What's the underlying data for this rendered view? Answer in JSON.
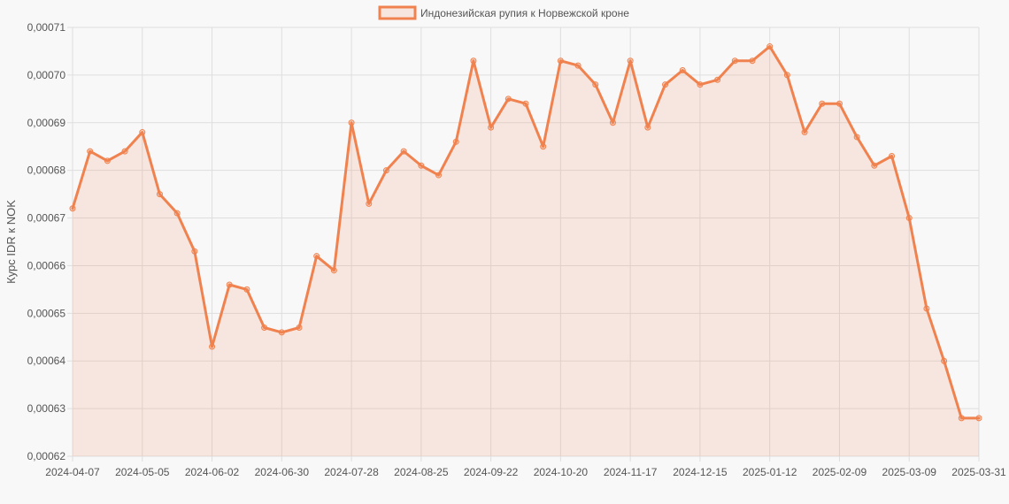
{
  "chart_data": {
    "type": "area",
    "title": "",
    "xlabel": "",
    "ylabel": "Курс IDR к NOK",
    "ylim": [
      0.00062,
      0.00071
    ],
    "y_ticks": [
      "0,00062",
      "0,00063",
      "0,00064",
      "0,00065",
      "0,00066",
      "0,00067",
      "0,00068",
      "0,00069",
      "0,00070",
      "0,00071"
    ],
    "x_ticks": [
      "2024-04-07",
      "2024-05-05",
      "2024-06-02",
      "2024-06-30",
      "2024-07-28",
      "2024-08-25",
      "2024-09-22",
      "2024-10-20",
      "2024-11-17",
      "2024-12-15",
      "2025-01-12",
      "2025-02-09",
      "2025-03-09",
      "2025-03-31"
    ],
    "x_tick_positions": [
      0,
      4,
      8,
      12,
      16,
      20,
      24,
      28,
      32,
      36,
      40,
      44,
      48,
      52
    ],
    "grid": true,
    "legend_position": "top-center",
    "series": [
      {
        "name": "Индонезийская рупия к Норвежской кроне",
        "color": "#f0824f",
        "fill": "rgba(240,130,79,0.15)",
        "values": [
          0.000672,
          0.000684,
          0.000682,
          0.000684,
          0.000688,
          0.000675,
          0.000671,
          0.000663,
          0.000643,
          0.000656,
          0.000655,
          0.000647,
          0.000646,
          0.000647,
          0.000662,
          0.000659,
          0.00069,
          0.000673,
          0.00068,
          0.000684,
          0.000681,
          0.000679,
          0.000686,
          0.000703,
          0.000689,
          0.000695,
          0.000694,
          0.000685,
          0.000703,
          0.000702,
          0.000698,
          0.00069,
          0.000703,
          0.000689,
          0.000698,
          0.000701,
          0.000698,
          0.000699,
          0.000703,
          0.000703,
          0.000706,
          0.0007,
          0.000688,
          0.000694,
          0.000694,
          0.000687,
          0.000681,
          0.000683,
          0.00067,
          0.000651,
          0.00064,
          0.000628,
          0.000628
        ]
      }
    ]
  }
}
